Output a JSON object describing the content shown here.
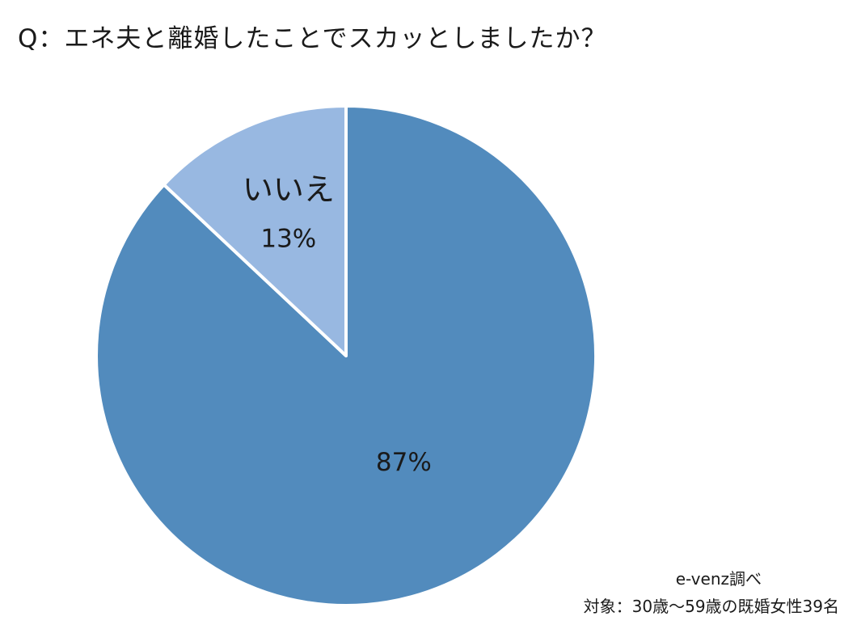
{
  "title": "Q：エネ夫と離婚したことでスカッとしましたか？",
  "chart_data": {
    "type": "pie",
    "slices": [
      {
        "label": "",
        "value": 87,
        "value_label": "87%",
        "color": "#528bbd"
      },
      {
        "label": "いいえ",
        "value": 13,
        "value_label": "13%",
        "color": "#98b8e1"
      }
    ],
    "start": "12 o'clock, clockwise",
    "legend": "none"
  },
  "source": "e-venz調べ",
  "note": "対象：30歳〜59歳の既婚女性39名"
}
